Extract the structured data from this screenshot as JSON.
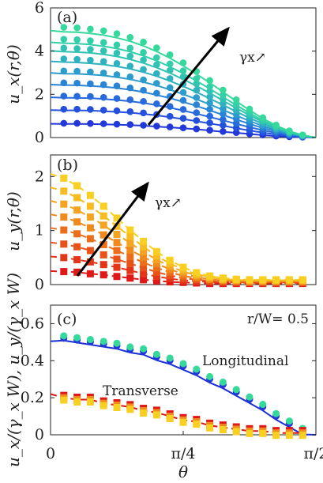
{
  "chart_data": [
    {
      "type": "scatter",
      "panel_label": "(a)",
      "ylabel": "u_x(r,θ)",
      "xlim": [
        0,
        1.5708
      ],
      "ylim": [
        0,
        6
      ],
      "yticks": [
        "0",
        "2",
        "4",
        "6"
      ],
      "annotation": "γx↗",
      "x": [
        0.0785,
        0.1571,
        0.2356,
        0.3142,
        0.3927,
        0.4712,
        0.5498,
        0.6283,
        0.7069,
        0.7854,
        0.8639,
        0.9425,
        1.021,
        1.0996,
        1.1781,
        1.2566,
        1.3352,
        1.4137,
        1.4923
      ],
      "amplitudes": [
        0.65,
        1.3,
        1.9,
        2.5,
        3.05,
        3.6,
        4.1,
        4.5,
        5.05
      ],
      "colors": [
        "#2238d8",
        "#2550dc",
        "#276adc",
        "#2a84d6",
        "#2c9ccd",
        "#2fb2c0",
        "#31c2b4",
        "#33cfa8",
        "#35d99c"
      ],
      "series": [
        {
          "values": [
            0.66,
            0.66,
            0.65,
            0.64,
            0.62,
            0.6,
            0.57,
            0.53,
            0.49,
            0.45,
            0.4,
            0.34,
            0.28,
            0.23,
            0.17,
            0.12,
            0.07,
            0.04,
            0.02
          ]
        },
        {
          "values": [
            1.31,
            1.31,
            1.3,
            1.27,
            1.24,
            1.2,
            1.14,
            1.07,
            0.98,
            0.89,
            0.79,
            0.68,
            0.57,
            0.45,
            0.34,
            0.24,
            0.15,
            0.08,
            0.03
          ]
        },
        {
          "values": [
            1.92,
            1.91,
            1.9,
            1.86,
            1.81,
            1.75,
            1.67,
            1.56,
            1.44,
            1.3,
            1.15,
            0.99,
            0.83,
            0.66,
            0.5,
            0.35,
            0.22,
            0.12,
            0.05
          ]
        },
        {
          "values": [
            2.53,
            2.52,
            2.49,
            2.45,
            2.39,
            2.3,
            2.19,
            2.05,
            1.9,
            1.72,
            1.52,
            1.31,
            1.09,
            0.87,
            0.66,
            0.46,
            0.29,
            0.15,
            0.06
          ]
        },
        {
          "values": [
            3.08,
            3.07,
            3.04,
            2.99,
            2.91,
            2.81,
            2.67,
            2.51,
            2.31,
            2.09,
            1.85,
            1.6,
            1.33,
            1.06,
            0.8,
            0.56,
            0.35,
            0.19,
            0.08
          ]
        },
        {
          "values": [
            3.64,
            3.62,
            3.58,
            3.52,
            3.43,
            3.31,
            3.15,
            2.96,
            2.73,
            2.47,
            2.19,
            1.88,
            1.57,
            1.25,
            0.94,
            0.66,
            0.41,
            0.22,
            0.09
          ]
        },
        {
          "values": [
            4.14,
            4.12,
            4.08,
            4.01,
            3.91,
            3.77,
            3.59,
            3.37,
            3.11,
            2.81,
            2.49,
            2.14,
            1.78,
            1.42,
            1.07,
            0.75,
            0.47,
            0.25,
            0.1
          ]
        },
        {
          "values": [
            4.55,
            4.53,
            4.48,
            4.4,
            4.29,
            4.14,
            3.94,
            3.7,
            3.41,
            3.09,
            2.73,
            2.35,
            1.96,
            1.56,
            1.18,
            0.82,
            0.52,
            0.27,
            0.11
          ]
        },
        {
          "values": [
            5.1,
            5.08,
            5.02,
            4.94,
            4.81,
            4.64,
            4.42,
            4.15,
            3.83,
            3.46,
            3.06,
            2.64,
            2.2,
            1.75,
            1.32,
            0.92,
            0.58,
            0.31,
            0.12
          ]
        }
      ]
    },
    {
      "type": "scatter",
      "panel_label": "(b)",
      "ylabel": "u_y(r,θ)",
      "xlim": [
        0,
        1.5708
      ],
      "ylim": [
        0,
        2.4
      ],
      "yticks": [
        "0",
        "1",
        "2"
      ],
      "annotation": "γx↗",
      "x": [
        0.0785,
        0.1571,
        0.2356,
        0.3142,
        0.3927,
        0.4712,
        0.5498,
        0.6283,
        0.7069,
        0.7854,
        0.8639,
        0.9425,
        1.021,
        1.0996,
        1.1781,
        1.2566,
        1.3352,
        1.4137,
        1.4923
      ],
      "amplitudes": [
        0.25,
        0.52,
        0.78,
        1.05,
        1.3,
        1.55,
        1.8,
        2.05
      ],
      "colors": [
        "#e01818",
        "#e43518",
        "#e85218",
        "#ec6e1a",
        "#f08a1c",
        "#f4a41e",
        "#f7bc20",
        "#f9d022"
      ],
      "series": [
        {
          "values": [
            0.24,
            0.23,
            0.2,
            0.18,
            0.15,
            0.12,
            0.09,
            0.07,
            0.05,
            0.04,
            0.03,
            0.02,
            0.02,
            0.02,
            0.02,
            0.02,
            0.02,
            0.02,
            0.02
          ]
        },
        {
          "values": [
            0.5,
            0.46,
            0.42,
            0.37,
            0.32,
            0.26,
            0.2,
            0.15,
            0.11,
            0.08,
            0.06,
            0.05,
            0.04,
            0.04,
            0.03,
            0.03,
            0.03,
            0.03,
            0.03
          ]
        },
        {
          "values": [
            0.75,
            0.7,
            0.63,
            0.55,
            0.47,
            0.39,
            0.31,
            0.23,
            0.17,
            0.12,
            0.09,
            0.07,
            0.05,
            0.04,
            0.04,
            0.04,
            0.04,
            0.04,
            0.04
          ]
        },
        {
          "values": [
            1.01,
            0.94,
            0.85,
            0.74,
            0.63,
            0.52,
            0.41,
            0.31,
            0.23,
            0.16,
            0.12,
            0.09,
            0.07,
            0.06,
            0.05,
            0.05,
            0.05,
            0.05,
            0.05
          ]
        },
        {
          "values": [
            1.25,
            1.16,
            1.05,
            0.92,
            0.78,
            0.64,
            0.51,
            0.39,
            0.28,
            0.2,
            0.14,
            0.1,
            0.08,
            0.07,
            0.06,
            0.06,
            0.06,
            0.06,
            0.06
          ]
        },
        {
          "values": [
            1.49,
            1.38,
            1.25,
            1.1,
            0.93,
            0.77,
            0.61,
            0.46,
            0.34,
            0.24,
            0.17,
            0.12,
            0.09,
            0.08,
            0.07,
            0.07,
            0.07,
            0.07,
            0.07
          ]
        },
        {
          "values": [
            1.73,
            1.61,
            1.45,
            1.27,
            1.08,
            0.89,
            0.7,
            0.53,
            0.39,
            0.28,
            0.19,
            0.14,
            0.1,
            0.09,
            0.08,
            0.08,
            0.08,
            0.08,
            0.08
          ]
        },
        {
          "values": [
            1.97,
            1.83,
            1.65,
            1.45,
            1.23,
            1.01,
            0.8,
            0.61,
            0.45,
            0.32,
            0.22,
            0.16,
            0.12,
            0.1,
            0.09,
            0.09,
            0.09,
            0.09,
            0.09
          ]
        }
      ]
    },
    {
      "type": "scatter",
      "panel_label": "(c)",
      "ylabel": "u_x/(γ_x W), u_y/(γ_x W)",
      "xlabel": "θ",
      "xlim": [
        0,
        1.5708
      ],
      "ylim": [
        0,
        0.7
      ],
      "yticks": [
        "0",
        "0.2",
        "0.4",
        "0.6"
      ],
      "xticks": [
        "0",
        "π/4",
        "π/2"
      ],
      "xtick_values": [
        0,
        0.7854,
        1.5708
      ],
      "annotation": "r/W= 0.5",
      "curve_labels": [
        "Longitudinal",
        "Transverse"
      ],
      "x": [
        0.0785,
        0.1571,
        0.2356,
        0.3142,
        0.3927,
        0.4712,
        0.5498,
        0.6283,
        0.7069,
        0.7854,
        0.8639,
        0.9425,
        1.021,
        1.0996,
        1.1781,
        1.2566,
        1.3352,
        1.4137,
        1.4923
      ],
      "longitudinal": {
        "line_color": "#1a2ed8",
        "colors": [
          "#2238d8",
          "#35d99c"
        ],
        "values": [
          0.53,
          0.52,
          0.51,
          0.5,
          0.49,
          0.47,
          0.46,
          0.43,
          0.41,
          0.38,
          0.35,
          0.31,
          0.28,
          0.24,
          0.2,
          0.16,
          0.11,
          0.07,
          0.03
        ]
      },
      "transverse": {
        "line_color": "#d81818",
        "colors": [
          "#e01818",
          "#f08a1c",
          "#f9d022"
        ],
        "values": [
          0.2,
          0.19,
          0.19,
          0.17,
          0.16,
          0.15,
          0.13,
          0.12,
          0.1,
          0.08,
          0.07,
          0.05,
          0.04,
          0.03,
          0.02,
          0.02,
          0.01,
          0.01,
          0.01
        ]
      }
    }
  ]
}
